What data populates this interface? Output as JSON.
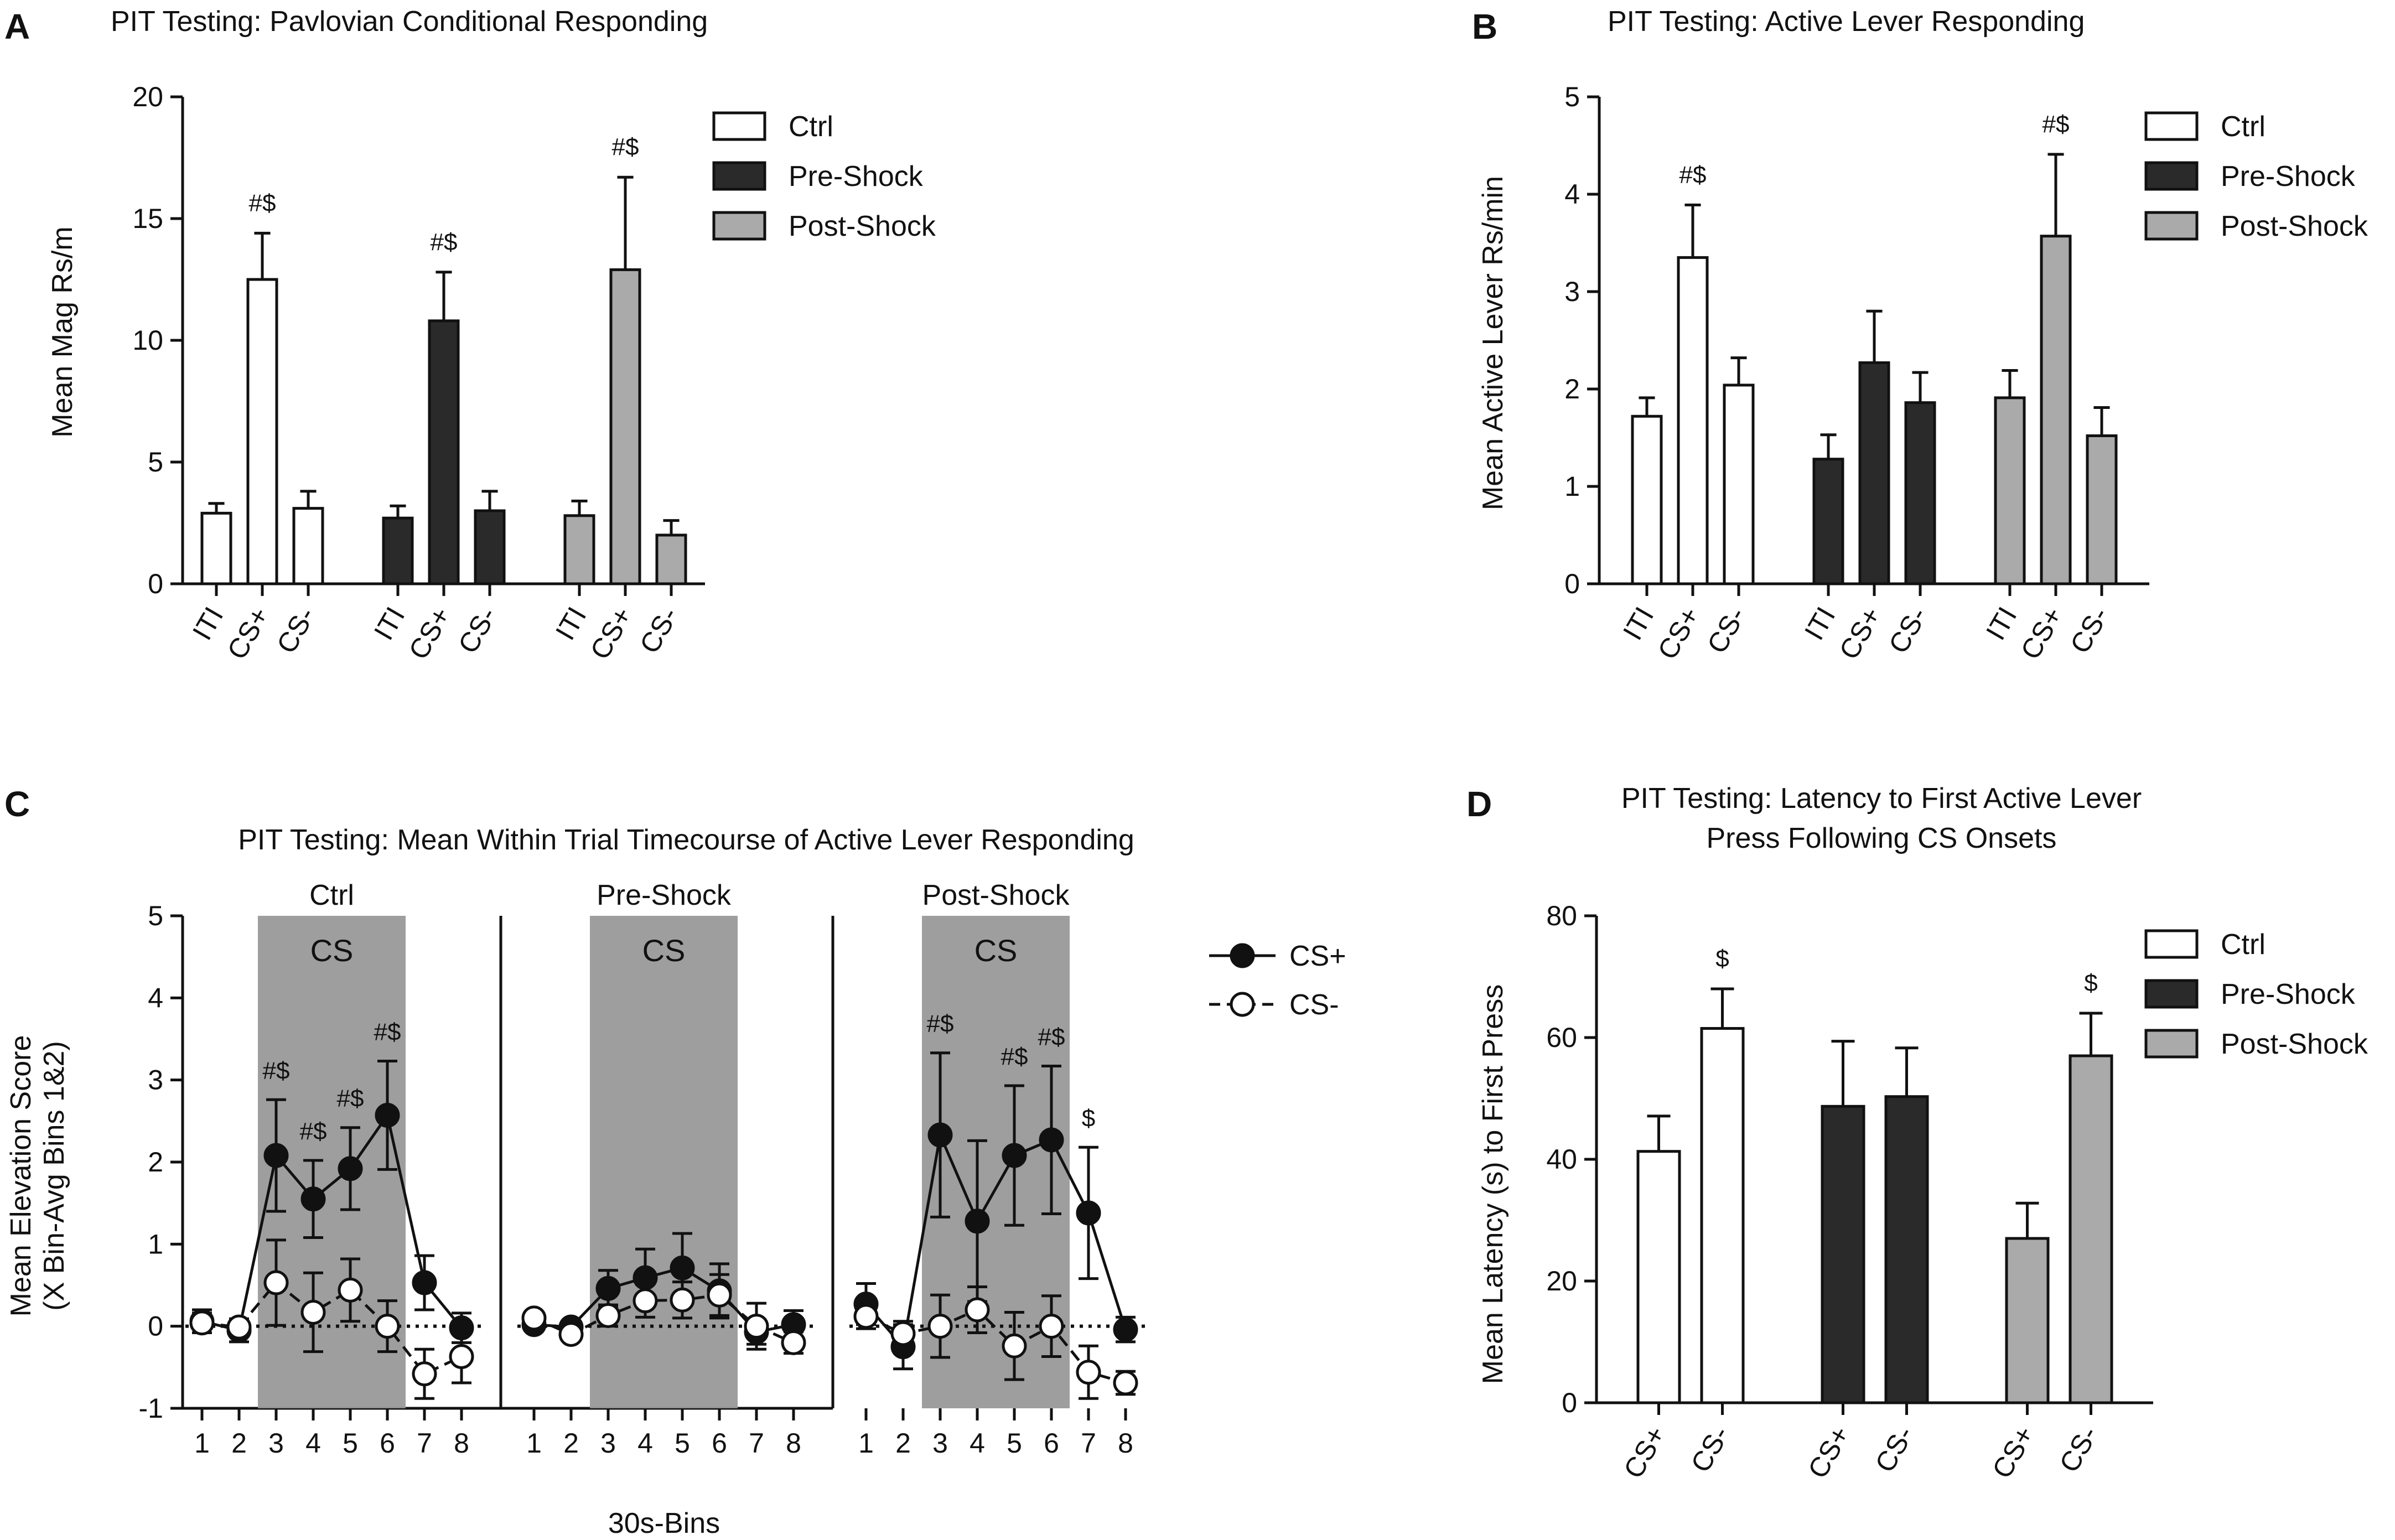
{
  "panels": {
    "A": {
      "letter": "A",
      "title": "PIT Testing: Pavlovian Conditional Responding",
      "ylabel": "Mean Mag Rs/m"
    },
    "B": {
      "letter": "B",
      "title": "PIT Testing:  Active Lever Responding",
      "ylabel": "Mean Active Lever Rs/min"
    },
    "C": {
      "letter": "C",
      "title": "PIT Testing: Mean Within Trial Timecourse of Active Lever Responding",
      "ylabel_line1": "Mean Elevation Score",
      "ylabel_line2": "(X Bin-Avg Bins 1&2)",
      "xlabel": "30s-Bins",
      "cs_label": "CS"
    },
    "D": {
      "letter": "D",
      "title_line1": "PIT Testing: Latency to First Active Lever",
      "title_line2": "Press Following CS Onsets",
      "ylabel": "Mean Latency (s) to First Press"
    }
  },
  "legend_groups": [
    "Ctrl",
    "Pre-Shock",
    "Post-Shock"
  ],
  "legend_cs": [
    "CS+",
    "CS-"
  ],
  "colors": {
    "ctrl": "#ffffff",
    "pre": "#2a2a2a",
    "post": "#aaaaaa",
    "cs_shade": "#999999",
    "ink": "#111111"
  },
  "chart_data": [
    {
      "panel": "A",
      "type": "bar",
      "title": "PIT Testing: Pavlovian Conditional Responding",
      "ylabel": "Mean Mag Rs/m",
      "ylim": [
        0,
        20
      ],
      "yticks": [
        0,
        5,
        10,
        15,
        20
      ],
      "categories": [
        "ITI",
        "CS+",
        "CS-"
      ],
      "series": [
        {
          "name": "Ctrl",
          "values": [
            2.9,
            12.5,
            3.1
          ],
          "errors": [
            0.4,
            1.9,
            0.7
          ],
          "sig": [
            "",
            "#$",
            ""
          ]
        },
        {
          "name": "Pre-Shock",
          "values": [
            2.7,
            10.8,
            3.0
          ],
          "errors": [
            0.5,
            2.0,
            0.8
          ],
          "sig": [
            "",
            "#$",
            ""
          ]
        },
        {
          "name": "Post-Shock",
          "values": [
            2.8,
            12.9,
            2.0
          ],
          "errors": [
            0.6,
            3.8,
            0.6
          ],
          "sig": [
            "",
            "#$",
            ""
          ]
        }
      ]
    },
    {
      "panel": "B",
      "type": "bar",
      "title": "PIT Testing:  Active Lever Responding",
      "ylabel": "Mean Active Lever Rs/min",
      "ylim": [
        0,
        5
      ],
      "yticks": [
        0,
        1,
        2,
        3,
        4,
        5
      ],
      "categories": [
        "ITI",
        "CS+",
        "CS-"
      ],
      "series": [
        {
          "name": "Ctrl",
          "values": [
            1.72,
            3.35,
            2.04
          ],
          "errors": [
            0.19,
            0.54,
            0.28
          ],
          "sig": [
            "",
            "#$",
            ""
          ]
        },
        {
          "name": "Pre-Shock",
          "values": [
            1.28,
            2.27,
            1.86
          ],
          "errors": [
            0.25,
            0.53,
            0.31
          ],
          "sig": [
            "",
            "",
            ""
          ]
        },
        {
          "name": "Post-Shock",
          "values": [
            1.91,
            3.57,
            1.52
          ],
          "errors": [
            0.28,
            0.84,
            0.29
          ],
          "sig": [
            "",
            "#$",
            ""
          ]
        }
      ]
    },
    {
      "panel": "C",
      "type": "line",
      "title": "PIT Testing: Mean Within Trial Timecourse of Active Lever Responding",
      "xlabel": "30s-Bins",
      "ylabel": "Mean Elevation Score (X Bin-Avg Bins 1&2)",
      "ylim": [
        -1,
        5
      ],
      "yticks": [
        -1,
        0,
        1,
        2,
        3,
        4,
        5
      ],
      "x": [
        1,
        2,
        3,
        4,
        5,
        6,
        7,
        8
      ],
      "cs_window_bins": [
        3,
        6
      ],
      "subplots": [
        {
          "name": "Ctrl",
          "series": [
            {
              "name": "CS+",
              "values": [
                0.06,
                -0.05,
                2.08,
                1.55,
                1.92,
                2.57,
                0.53,
                -0.02
              ],
              "errors": [
                0.14,
                0.14,
                0.68,
                0.47,
                0.5,
                0.66,
                0.33,
                0.18
              ],
              "sig": [
                "",
                "",
                "#$",
                "#$",
                "#$",
                "#$",
                "",
                ""
              ]
            },
            {
              "name": "CS-",
              "values": [
                0.04,
                -0.01,
                0.53,
                0.17,
                0.44,
                0.0,
                -0.58,
                -0.37
              ],
              "errors": [
                0.12,
                0.1,
                0.52,
                0.48,
                0.38,
                0.31,
                0.3,
                0.32
              ],
              "sig": [
                "",
                "",
                "",
                "",
                "",
                "",
                "",
                ""
              ]
            }
          ]
        },
        {
          "name": "Pre-Shock",
          "series": [
            {
              "name": "CS+",
              "values": [
                0.02,
                -0.01,
                0.46,
                0.59,
                0.71,
                0.43,
                -0.07,
                0.02
              ],
              "errors": [
                0.07,
                0.07,
                0.22,
                0.35,
                0.42,
                0.33,
                0.15,
                0.17
              ],
              "sig": [
                "",
                "",
                "",
                "",
                "",
                "",
                "",
                ""
              ]
            },
            {
              "name": "CS-",
              "values": [
                0.1,
                -0.1,
                0.13,
                0.31,
                0.32,
                0.38,
                0.0,
                -0.2
              ],
              "errors": [
                0.07,
                0.07,
                0.13,
                0.2,
                0.22,
                0.25,
                0.28,
                0.13
              ],
              "sig": [
                "",
                "",
                "",
                "",
                "",
                "",
                "",
                ""
              ]
            }
          ]
        },
        {
          "name": "Post-Shock",
          "series": [
            {
              "name": "CS+",
              "values": [
                0.27,
                -0.25,
                2.33,
                1.28,
                2.08,
                2.27,
                1.38,
                -0.04
              ],
              "errors": [
                0.25,
                0.27,
                1.0,
                0.98,
                0.85,
                0.9,
                0.8,
                0.15
              ],
              "sig": [
                "",
                "",
                "#$",
                "",
                "#$",
                "#$",
                "$",
                ""
              ]
            },
            {
              "name": "CS-",
              "values": [
                0.12,
                -0.09,
                0.0,
                0.2,
                -0.24,
                0.0,
                -0.56,
                -0.69
              ],
              "errors": [
                0.15,
                0.15,
                0.38,
                0.28,
                0.41,
                0.37,
                0.32,
                0.14
              ],
              "sig": [
                "",
                "",
                "",
                "",
                "",
                "",
                "",
                ""
              ]
            }
          ]
        }
      ]
    },
    {
      "panel": "D",
      "type": "bar",
      "title": "PIT Testing: Latency to First Active Lever Press Following CS Onsets",
      "ylabel": "Mean Latency (s) to First Press",
      "ylim": [
        0,
        80
      ],
      "yticks": [
        0,
        20,
        40,
        60,
        80
      ],
      "categories": [
        "CS+",
        "CS-"
      ],
      "series": [
        {
          "name": "Ctrl",
          "values": [
            41.3,
            61.5
          ],
          "errors": [
            5.8,
            6.5
          ],
          "sig": [
            "",
            "$"
          ]
        },
        {
          "name": "Pre-Shock",
          "values": [
            48.7,
            50.3
          ],
          "errors": [
            10.7,
            8.0
          ],
          "sig": [
            "",
            ""
          ]
        },
        {
          "name": "Post-Shock",
          "values": [
            27.0,
            57.0
          ],
          "errors": [
            5.8,
            7.0
          ],
          "sig": [
            "",
            "$"
          ]
        }
      ]
    }
  ]
}
